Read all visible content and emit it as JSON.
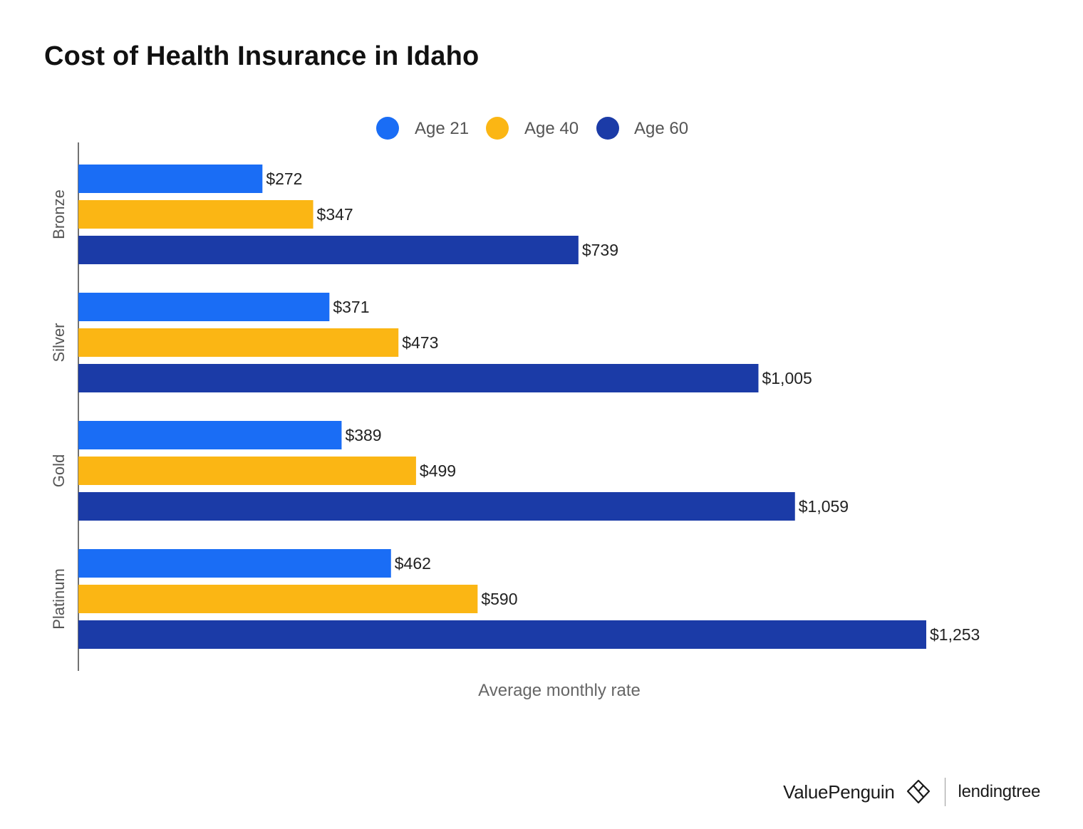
{
  "chart_data": {
    "type": "bar",
    "orientation": "horizontal",
    "title": "Cost of Health Insurance in Idaho",
    "categories": [
      "Bronze",
      "Silver",
      "Gold",
      "Platinum"
    ],
    "series": [
      {
        "name": "Age 21",
        "color": "#1a6df5",
        "values": [
          272,
          371,
          389,
          462
        ],
        "labels": [
          "$272",
          "$371",
          "$389",
          "$462"
        ]
      },
      {
        "name": "Age 40",
        "color": "#fbb614",
        "values": [
          347,
          473,
          499,
          590
        ],
        "labels": [
          "$347",
          "$473",
          "$499",
          "$590"
        ]
      },
      {
        "name": "Age 60",
        "color": "#1b3ba7",
        "values": [
          739,
          1005,
          1059,
          1253
        ],
        "labels": [
          "$739",
          "$1,005",
          "$1,059",
          "$1,253"
        ]
      }
    ],
    "xlabel": "Average monthly rate",
    "ylabel": "",
    "xlim": [
      0,
      1253
    ],
    "grid": false,
    "legend": "top-center"
  },
  "footer": {
    "brand": "ValuePenguin",
    "partner": "lendingtree",
    "brand_icon": "valuepenguin-logo-icon"
  }
}
